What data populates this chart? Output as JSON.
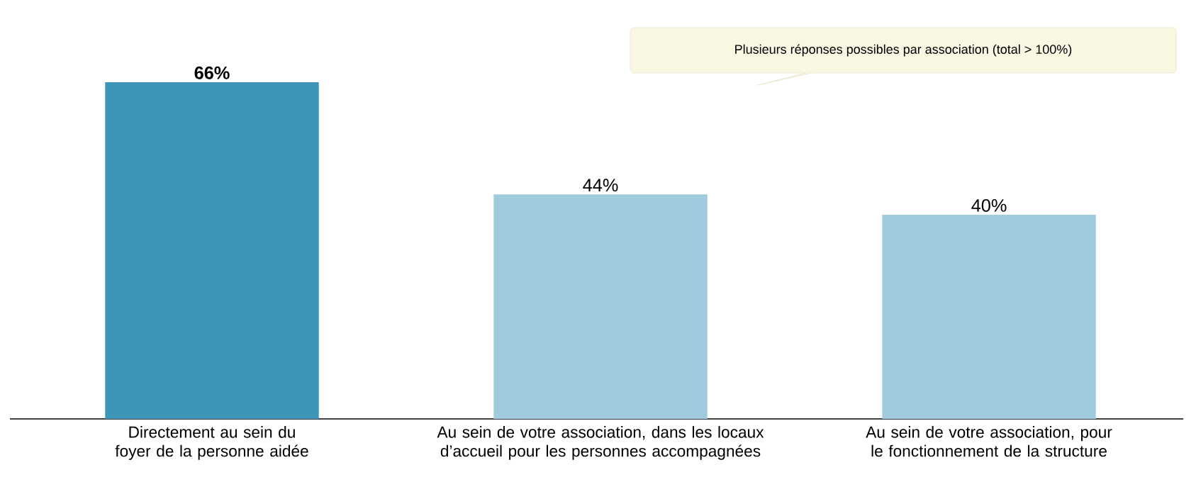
{
  "chart_data": {
    "type": "bar",
    "categories": [
      "Directement au sein du foyer de la personne aidée",
      "Au sein de votre association, dans les locaux d’accueil pour les personnes accompagnées",
      "Au sein de votre association, pour le fonctionnement de la structure"
    ],
    "values": [
      66,
      44,
      40
    ],
    "colors": [
      "#3d96b8",
      "#9fcbdd",
      "#9fcbdd"
    ],
    "value_labels": [
      "**66%**",
      "44%",
      "40%"
    ],
    "annotations": [
      "Plusieurs réponses possibles par association (total > 100%)"
    ]
  }
}
